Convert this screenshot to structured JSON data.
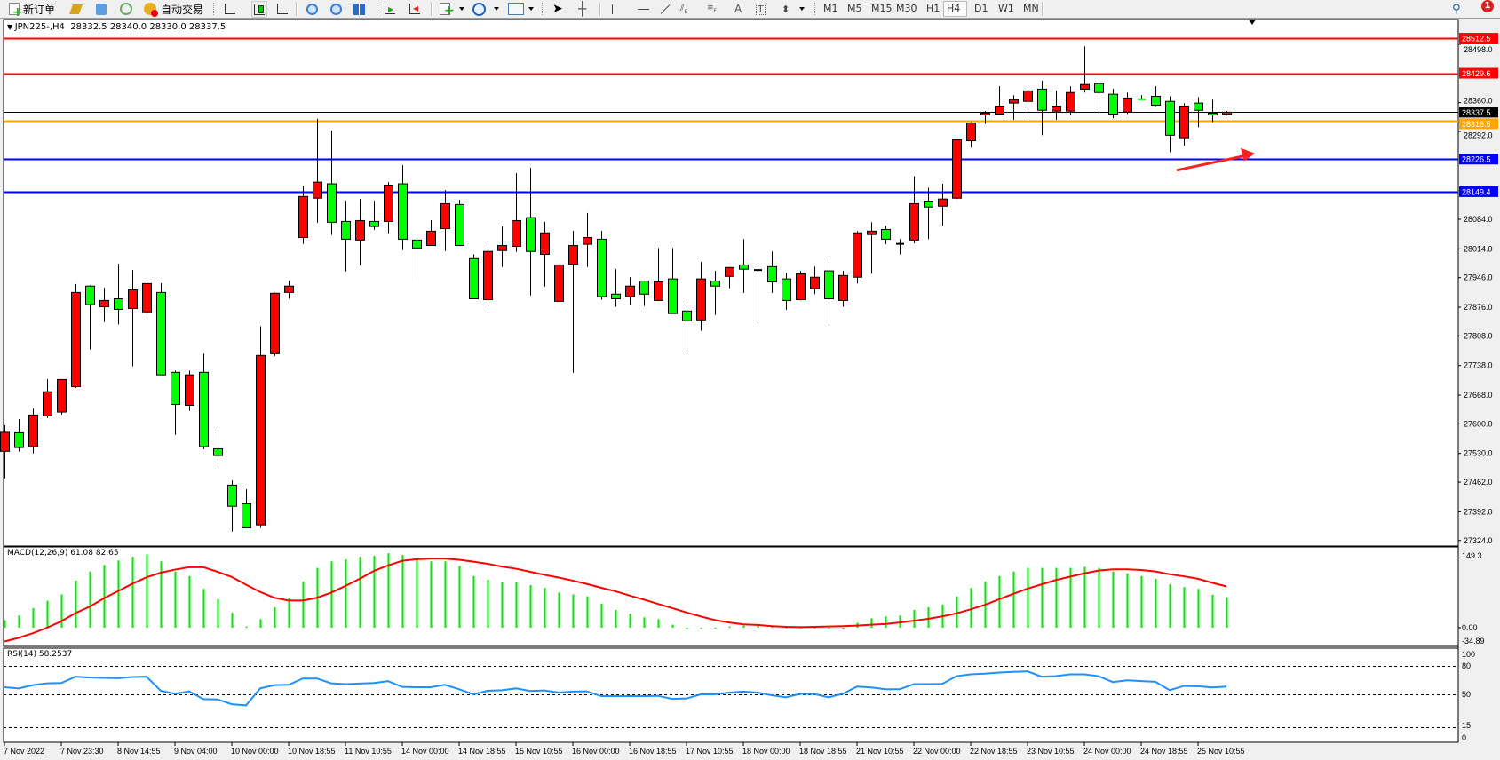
{
  "toolbar": {
    "new_order_label": "新订单",
    "auto_trading_label": "自动交易",
    "icons": [
      "new-order-icon",
      "gold-icon",
      "navigator-icon",
      "signal-icon",
      "auto-trading-icon",
      "bar-chart-icon",
      "candlestick-icon",
      "line-chart-icon",
      "zoom-in-icon",
      "zoom-out-icon",
      "tile-windows-icon",
      "chart-shift-icon",
      "auto-scroll-icon",
      "indicators-icon",
      "periods-icon",
      "templates-icon",
      "cursor-icon",
      "crosshair-icon",
      "vertical-line-icon",
      "horizontal-line-icon",
      "trendline-icon",
      "equidistant-channel-icon",
      "fibonacci-icon",
      "text-icon",
      "text-label-icon",
      "arrows-icon",
      "search-icon",
      "notification-icon"
    ],
    "text_tool_label": "A",
    "text_label_tool": "T",
    "timeframes": [
      "M1",
      "M5",
      "M15",
      "M30",
      "H1",
      "H4",
      "D1",
      "W1",
      "MN"
    ],
    "active_timeframe": "H4",
    "notification_count": "1"
  },
  "chart_header": {
    "symbol": "JPN225-,H4",
    "ohlc": "28332.5 28340.0 28330.0 28337.5"
  },
  "colors": {
    "bull": "#ff0000",
    "bear": "#00ff00",
    "macd_hist": "#00e600",
    "macd_signal": "#ff0000",
    "rsi_line": "#1e90ff"
  },
  "chart_data": [
    {
      "type": "candlestick",
      "title": "JPN225-,H4",
      "x_tick_labels": [
        "7 Nov 2022",
        "7 Nov 23:30",
        "8 Nov 14:55",
        "9 Nov 04:00",
        "10 Nov 00:00",
        "10 Nov 18:55",
        "11 Nov 10:55",
        "14 Nov 00:00",
        "14 Nov 18:55",
        "15 Nov 10:55",
        "16 Nov 00:00",
        "16 Nov 18:55",
        "17 Nov 10:55",
        "18 Nov 00:00",
        "18 Nov 18:55",
        "21 Nov 10:55",
        "22 Nov 00:00",
        "22 Nov 18:55",
        "23 Nov 10:55",
        "24 Nov 00:00",
        "24 Nov 18:55",
        "25 Nov 10:55"
      ],
      "y_tick_labels": [
        "28498.0",
        "28360.0",
        "28292.0",
        "28084.0",
        "28014.0",
        "27946.0",
        "27876.0",
        "27808.0",
        "27738.0",
        "27668.0",
        "27600.0",
        "27530.0",
        "27462.0",
        "27392.0",
        "27324.0"
      ],
      "ylim": [
        27324,
        28512.5
      ],
      "ohlc_order": [
        "open",
        "high",
        "low",
        "close"
      ],
      "candles": [
        [
          27535,
          27597,
          27471,
          27580
        ],
        [
          27579,
          27611,
          27534,
          27544
        ],
        [
          27546,
          27636,
          27530,
          27621
        ],
        [
          27619,
          27706,
          27614,
          27676
        ],
        [
          27628,
          27705,
          27622,
          27705
        ],
        [
          27688,
          27931,
          27685,
          27911
        ],
        [
          27926,
          27928,
          27776,
          27882
        ],
        [
          27877,
          27922,
          27841,
          27892
        ],
        [
          27896,
          27979,
          27835,
          27871
        ],
        [
          27873,
          27964,
          27736,
          27917
        ],
        [
          27865,
          27936,
          27858,
          27932
        ],
        [
          27911,
          27933,
          27716,
          27716
        ],
        [
          27722,
          27726,
          27574,
          27646
        ],
        [
          27644,
          27726,
          27631,
          27716
        ],
        [
          27722,
          27766,
          27540,
          27546
        ],
        [
          27541,
          27592,
          27505,
          27525
        ],
        [
          27455,
          27466,
          27345,
          27405
        ],
        [
          27411,
          27445,
          27354,
          27354
        ],
        [
          27361,
          27831,
          27354,
          27762
        ],
        [
          27766,
          27911,
          27761,
          27909
        ],
        [
          27911,
          27939,
          27896,
          27926
        ],
        [
          28041,
          28163,
          28026,
          28138
        ],
        [
          28134,
          28322,
          28076,
          28172
        ],
        [
          28168,
          28294,
          28047,
          28077
        ],
        [
          28079,
          28128,
          27961,
          28037
        ],
        [
          28035,
          28132,
          27975,
          28081
        ],
        [
          28079,
          28128,
          28059,
          28067
        ],
        [
          28079,
          28172,
          28051,
          28165
        ],
        [
          28168,
          28212,
          28011,
          28037
        ],
        [
          28035,
          28041,
          27931,
          28016
        ],
        [
          28022,
          28082,
          28022,
          28056
        ],
        [
          28062,
          28153,
          28009,
          28121
        ],
        [
          28119,
          28130,
          28022,
          28022
        ],
        [
          27991,
          28001,
          27896,
          27896
        ],
        [
          27894,
          28027,
          27877,
          28008
        ],
        [
          28010,
          28067,
          27971,
          28022
        ],
        [
          28020,
          28193,
          28007,
          28081
        ],
        [
          28088,
          28206,
          27904,
          28008
        ],
        [
          28001,
          28078,
          27925,
          28052
        ],
        [
          27890,
          27976,
          27890,
          27976
        ],
        [
          27978,
          28057,
          27721,
          28022
        ],
        [
          28025,
          28099,
          27971,
          28041
        ],
        [
          28037,
          28057,
          27894,
          27901
        ],
        [
          27907,
          27966,
          27877,
          27896
        ],
        [
          27901,
          27947,
          27881,
          27926
        ],
        [
          27938,
          27938,
          27879,
          27907
        ],
        [
          27892,
          28016,
          27892,
          27936
        ],
        [
          27943,
          28016,
          27861,
          27861
        ],
        [
          27867,
          27882,
          27765,
          27844
        ],
        [
          27846,
          27983,
          27820,
          27943
        ],
        [
          27938,
          27962,
          27858,
          27926
        ],
        [
          27949,
          27970,
          27921,
          27970
        ],
        [
          27976,
          28037,
          27910,
          27966
        ],
        [
          27964,
          27972,
          27845,
          27964
        ],
        [
          27972,
          28008,
          27910,
          27936
        ],
        [
          27943,
          27957,
          27870,
          27892
        ],
        [
          27894,
          27962,
          27892,
          27955
        ],
        [
          27920,
          27972,
          27907,
          27947
        ],
        [
          27962,
          27991,
          27831,
          27896
        ],
        [
          27892,
          27962,
          27877,
          27951
        ],
        [
          27947,
          28056,
          27932,
          28052
        ],
        [
          28048,
          28077,
          27955,
          28056
        ],
        [
          28060,
          28069,
          28025,
          28037
        ],
        [
          28026,
          28037,
          28001,
          28026
        ],
        [
          28035,
          28186,
          28027,
          28121
        ],
        [
          28127,
          28159,
          28037,
          28113
        ],
        [
          28115,
          28168,
          28069,
          28132
        ],
        [
          28134,
          28272,
          28132,
          28272
        ],
        [
          28270,
          28314,
          28254,
          28312
        ],
        [
          28331,
          28340,
          28310,
          28335
        ],
        [
          28333,
          28399,
          28333,
          28352
        ],
        [
          28359,
          28378,
          28319,
          28367
        ],
        [
          28363,
          28392,
          28319,
          28388
        ],
        [
          28392,
          28412,
          28283,
          28342
        ],
        [
          28340,
          28389,
          28319,
          28352
        ],
        [
          28340,
          28399,
          28331,
          28384
        ],
        [
          28392,
          28493,
          28384,
          28403
        ],
        [
          28405,
          28417,
          28338,
          28384
        ],
        [
          28380,
          28393,
          28323,
          28333
        ],
        [
          28338,
          28384,
          28333,
          28371
        ],
        [
          28368,
          28378,
          28367,
          28367
        ],
        [
          28375,
          28399,
          28352,
          28354
        ],
        [
          28363,
          28375,
          28243,
          28283
        ],
        [
          28277,
          28359,
          28258,
          28352
        ],
        [
          28359,
          28373,
          28302,
          28342
        ],
        [
          28335,
          28367,
          28314,
          28331
        ],
        [
          28332.5,
          28340,
          28330,
          28337.5
        ]
      ],
      "levels": [
        {
          "value": 28512.5,
          "label": "28512.5",
          "color": "#ff0000"
        },
        {
          "value": 28429.6,
          "label": "28429.6",
          "color": "#ff0000"
        },
        {
          "value": 28337.5,
          "label": "28337.5",
          "color": "#000000"
        },
        {
          "value": 28316.5,
          "label": "28316.5",
          "color": "#ffa500"
        },
        {
          "value": 28226.5,
          "label": "28226.5",
          "color": "#0000ff"
        },
        {
          "value": 28149.4,
          "label": "28149.4",
          "color": "#0000ff"
        }
      ],
      "annotation": {
        "type": "arrow",
        "color": "#ff2020",
        "from": [
          82.5,
          28200
        ],
        "to": [
          88,
          28240
        ]
      }
    },
    {
      "type": "bar",
      "title": "MACD(12,26,9) 61.08 82.65",
      "y_tick_labels": [
        "149.3",
        "0.00",
        "-34.89"
      ],
      "ylim": [
        -34.89,
        149.3
      ],
      "series": [
        {
          "kind": "histogram",
          "values": [
            15.3,
            24.5,
            39.2,
            53.9,
            66.7,
            94.3,
            112.6,
            125.5,
            134.6,
            142,
            147,
            132.9,
            112.6,
            103.4,
            77.7,
            57.5,
            30,
            2.4,
            17.1,
            41,
            59.4,
            92.4,
            119.9,
            132.9,
            136.6,
            142,
            143.8,
            149,
            145.6,
            138.3,
            132.9,
            132.9,
            123.6,
            103.4,
            96.1,
            90.6,
            90.6,
            85.1,
            79.6,
            70.4,
            66.7,
            63,
            48.3,
            35.5,
            28.2,
            20.8,
            17.1,
            6.1,
            -3,
            -2.5,
            -2,
            2.4,
            4.3,
            4.3,
            2.4,
            0.5,
            0.5,
            0.3,
            -2.5,
            -1,
            9.8,
            19,
            22.6,
            24.5,
            35.5,
            41,
            46.5,
            63,
            79.6,
            92.4,
            103.4,
            112.6,
            119.9,
            119.9,
            119.9,
            119.9,
            121.8,
            119.9,
            112.6,
            108.9,
            103.4,
            97.9,
            86.9,
            81.4,
            77.7,
            66,
            61.08
          ]
        },
        {
          "kind": "line",
          "values": [
            -27.5,
            -20.2,
            -11,
            0,
            12.9,
            29.4,
            42.2,
            58.8,
            73.4,
            88.1,
            101,
            110.2,
            116.3,
            121.2,
            121.2,
            112,
            101.6,
            86.3,
            71.6,
            60,
            54.5,
            54.5,
            60,
            70.4,
            83.8,
            97.9,
            113.8,
            124.8,
            134,
            137.1,
            138.3,
            138.3,
            135.9,
            132.2,
            127.9,
            122.4,
            118.1,
            112,
            105.9,
            100.4,
            94.3,
            87.5,
            80,
            73,
            64.3,
            56.3,
            47.7,
            39.2,
            30.6,
            22.6,
            15.3,
            10.4,
            6.7,
            5.5,
            3.1,
            1.8,
            1.2,
            1.8,
            2.4,
            3.1,
            4.3,
            6.1,
            7.3,
            10.4,
            14.1,
            17.7,
            22.6,
            28.8,
            36.7,
            45.9,
            56.9,
            67.9,
            78.3,
            86.9,
            95.5,
            102.2,
            108.9,
            114.4,
            116.9,
            116.9,
            115.6,
            112.6,
            107,
            103,
            98,
            90,
            82.65
          ]
        }
      ]
    },
    {
      "type": "line",
      "title": "RSI(14) 58.2537",
      "y_tick_labels": [
        "100",
        "80",
        "50",
        "15",
        "0"
      ],
      "ylim": [
        0,
        100
      ],
      "levels": [
        80,
        50,
        15
      ],
      "values": [
        57.6,
        56.3,
        59.8,
        61.7,
        62,
        68.7,
        67.8,
        67.4,
        67.1,
        68.4,
        68.7,
        53.8,
        50.6,
        53.2,
        44.9,
        44.6,
        39.5,
        38.3,
        56.3,
        59.8,
        60.1,
        66.8,
        66.8,
        61.7,
        60.8,
        61.4,
        62,
        64,
        57.9,
        57.6,
        57.6,
        60.1,
        55.4,
        50,
        53.8,
        54.4,
        56.3,
        53.5,
        54.1,
        51.9,
        52.9,
        53.2,
        48.1,
        48.1,
        48.1,
        48.1,
        48.4,
        45.2,
        45.6,
        50,
        50,
        51.9,
        52.9,
        51.9,
        49,
        46.8,
        50.6,
        50.3,
        46.8,
        50.6,
        58.2,
        57.3,
        55.4,
        55.4,
        60.8,
        60.8,
        61.1,
        69.3,
        71.2,
        71.9,
        73.1,
        73.8,
        74.4,
        68.7,
        69.3,
        71.2,
        71.2,
        69.3,
        63,
        64.9,
        64,
        63.3,
        54.4,
        58.9,
        58.6,
        57.3,
        58.25
      ]
    }
  ]
}
